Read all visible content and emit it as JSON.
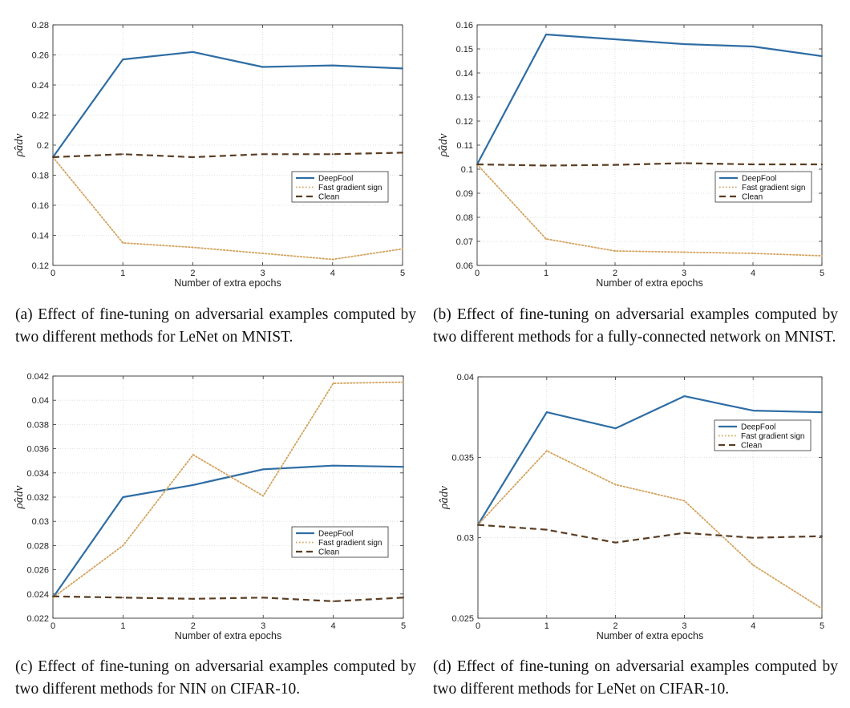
{
  "colors": {
    "deepfool": "#2e6da4",
    "fgs": "#d4a35e",
    "clean": "#5a3d22"
  },
  "captions": [
    "(a) Effect of fine-tuning on adversarial examples computed by two different methods for LeNet on MNIST.",
    "(b) Effect of fine-tuning on adversarial examples computed by two different methods for a fully-connected network on MNIST.",
    "(c) Effect of fine-tuning on adversarial examples computed by two different methods for NIN on CIFAR-10.",
    "(d) Effect of fine-tuning on adversarial examples computed by two different methods for LeNet on CIFAR-10."
  ],
  "chart_data": [
    {
      "type": "line",
      "xlabel": "Number of extra epochs",
      "ylabel": "ρ̂adv",
      "x": [
        0,
        1,
        2,
        3,
        4,
        5
      ],
      "xlim": [
        0,
        5
      ],
      "ylim": [
        0.12,
        0.28
      ],
      "xticks": [
        "0",
        "1",
        "2",
        "3",
        "4",
        "5"
      ],
      "yticks": [
        "0.12",
        "0.14",
        "0.16",
        "0.18",
        "0.2",
        "0.22",
        "0.24",
        "0.26",
        "0.28"
      ],
      "ytick_values": [
        0.12,
        0.14,
        0.16,
        0.18,
        0.2,
        0.22,
        0.24,
        0.26,
        0.28
      ],
      "grid": true,
      "legend_position": "center-right",
      "series": [
        {
          "name": "DeepFool",
          "style": "solid",
          "values": [
            0.192,
            0.257,
            0.262,
            0.252,
            0.253,
            0.251
          ]
        },
        {
          "name": "Fast gradient sign",
          "style": "dotted",
          "values": [
            0.192,
            0.135,
            0.132,
            0.128,
            0.124,
            0.131
          ]
        },
        {
          "name": "Clean",
          "style": "dashed",
          "values": [
            0.192,
            0.194,
            0.192,
            0.194,
            0.194,
            0.195
          ]
        }
      ]
    },
    {
      "type": "line",
      "xlabel": "Number of extra epochs",
      "ylabel": "ρ̂adv",
      "x": [
        0,
        1,
        2,
        3,
        4,
        5
      ],
      "xlim": [
        0,
        5
      ],
      "ylim": [
        0.06,
        0.16
      ],
      "xticks": [
        "0",
        "1",
        "2",
        "3",
        "4",
        "5"
      ],
      "yticks": [
        "0.06",
        "0.07",
        "0.08",
        "0.09",
        "0.1",
        "0.11",
        "0.12",
        "0.13",
        "0.14",
        "0.15",
        "0.16"
      ],
      "ytick_values": [
        0.06,
        0.07,
        0.08,
        0.09,
        0.1,
        0.11,
        0.12,
        0.13,
        0.14,
        0.15,
        0.16
      ],
      "grid": true,
      "legend_position": "center-right",
      "series": [
        {
          "name": "DeepFool",
          "style": "solid",
          "values": [
            0.102,
            0.156,
            0.154,
            0.152,
            0.151,
            0.147
          ]
        },
        {
          "name": "Fast gradient sign",
          "style": "dotted",
          "values": [
            0.102,
            0.071,
            0.066,
            0.0655,
            0.065,
            0.064
          ]
        },
        {
          "name": "Clean",
          "style": "dashed",
          "values": [
            0.102,
            0.1015,
            0.1018,
            0.1025,
            0.102,
            0.102
          ]
        }
      ]
    },
    {
      "type": "line",
      "xlabel": "Number of extra epochs",
      "ylabel": "ρ̂adv",
      "x": [
        0,
        1,
        2,
        3,
        4,
        5
      ],
      "xlim": [
        0,
        5
      ],
      "ylim": [
        0.022,
        0.042
      ],
      "xticks": [
        "0",
        "1",
        "2",
        "3",
        "4",
        "5"
      ],
      "yticks": [
        "0.022",
        "0.024",
        "0.026",
        "0.028",
        "0.03",
        "0.032",
        "0.034",
        "0.036",
        "0.038",
        "0.04",
        "0.042"
      ],
      "ytick_values": [
        0.022,
        0.024,
        0.026,
        0.028,
        0.03,
        0.032,
        0.034,
        0.036,
        0.038,
        0.04,
        0.042
      ],
      "grid": true,
      "legend_position": "center-right",
      "series": [
        {
          "name": "DeepFool",
          "style": "solid",
          "values": [
            0.0237,
            0.032,
            0.033,
            0.0343,
            0.0346,
            0.0345
          ]
        },
        {
          "name": "Fast gradient sign",
          "style": "dotted",
          "values": [
            0.0237,
            0.028,
            0.0355,
            0.0321,
            0.0414,
            0.0415
          ]
        },
        {
          "name": "Clean",
          "style": "dashed",
          "values": [
            0.0238,
            0.0237,
            0.0236,
            0.0237,
            0.0234,
            0.0237
          ]
        }
      ]
    },
    {
      "type": "line",
      "xlabel": "Number of extra epochs",
      "ylabel": "ρ̂adv",
      "x": [
        0,
        1,
        2,
        3,
        4,
        5
      ],
      "xlim": [
        0,
        5
      ],
      "ylim": [
        0.025,
        0.04
      ],
      "xticks": [
        "0",
        "1",
        "2",
        "3",
        "4",
        "5"
      ],
      "yticks": [
        "0.025",
        "0.03",
        "0.035",
        "0.04"
      ],
      "ytick_values": [
        0.025,
        0.03,
        0.035,
        0.04
      ],
      "grid": true,
      "legend_position": "upper-right",
      "series": [
        {
          "name": "DeepFool",
          "style": "solid",
          "values": [
            0.0308,
            0.0378,
            0.0368,
            0.0388,
            0.0379,
            0.0378
          ]
        },
        {
          "name": "Fast gradient sign",
          "style": "dotted",
          "values": [
            0.0308,
            0.0354,
            0.0333,
            0.0323,
            0.0283,
            0.0256
          ]
        },
        {
          "name": "Clean",
          "style": "dashed",
          "values": [
            0.0308,
            0.0305,
            0.0297,
            0.0303,
            0.03,
            0.0301
          ]
        }
      ]
    }
  ]
}
